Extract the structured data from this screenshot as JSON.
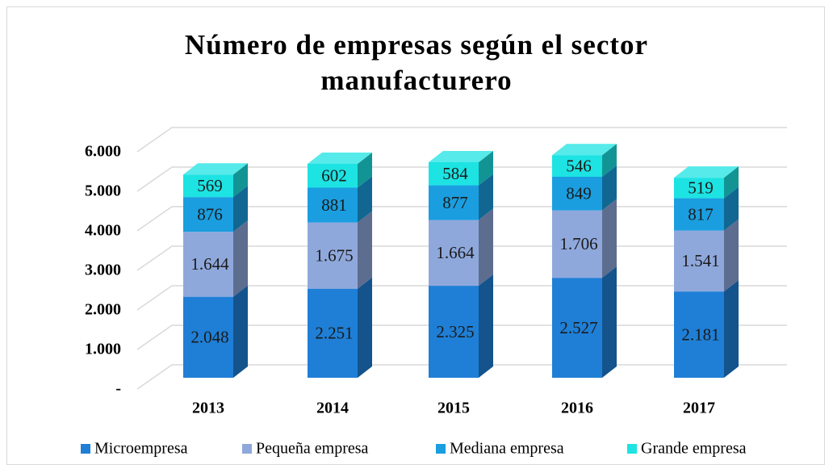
{
  "chart_data": {
    "type": "bar3d_stacked",
    "title": "Número de empresas según el sector manufacturero",
    "categories": [
      "2013",
      "2014",
      "2015",
      "2016",
      "2017"
    ],
    "series": [
      {
        "name": "Microempresa",
        "color": "#1f7fd6",
        "values": [
          2048,
          2251,
          2325,
          2527,
          2181
        ],
        "value_labels": [
          "2.048",
          "2.251",
          "2.325",
          "2.527",
          "2.181"
        ]
      },
      {
        "name": "Pequeña empresa",
        "color": "#8fa8dc",
        "values": [
          1644,
          1675,
          1664,
          1706,
          1541
        ],
        "value_labels": [
          "1.644",
          "1.675",
          "1.664",
          "1.706",
          "1.541"
        ]
      },
      {
        "name": "Mediana empresa",
        "color": "#1a9ee0",
        "values": [
          876,
          881,
          877,
          849,
          817
        ]
      },
      {
        "name": "Grande empresa",
        "color": "#1de3e3",
        "values": [
          569,
          602,
          584,
          546,
          519
        ]
      }
    ],
    "ylim": [
      0,
      6000
    ],
    "yticks": [
      {
        "value": 0,
        "label": "-"
      },
      {
        "value": 1000,
        "label": "1.000"
      },
      {
        "value": 2000,
        "label": "2.000"
      },
      {
        "value": 3000,
        "label": "3.000"
      },
      {
        "value": 4000,
        "label": "4.000"
      },
      {
        "value": 5000,
        "label": "5.000"
      },
      {
        "value": 6000,
        "label": "6.000"
      }
    ],
    "grid": true,
    "legend": "bottom"
  }
}
